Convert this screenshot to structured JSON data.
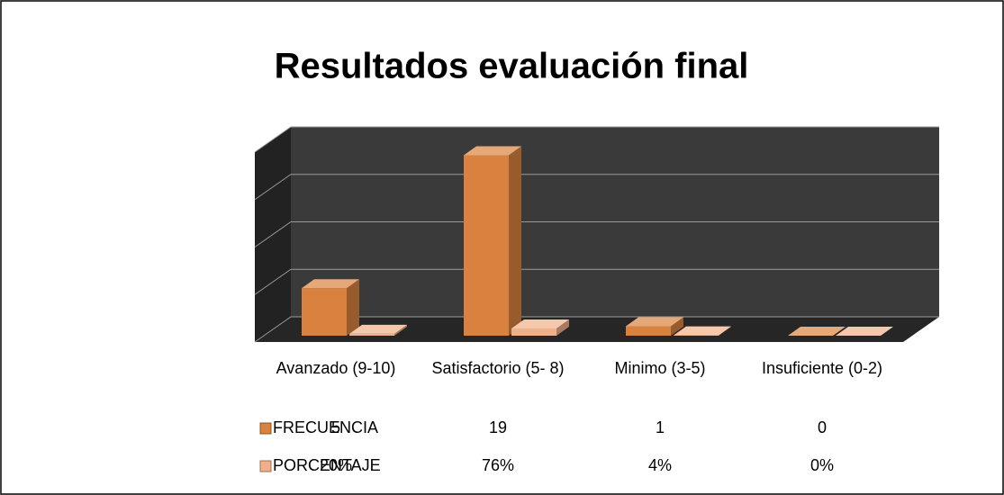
{
  "chart_data": {
    "type": "bar3d",
    "title": "Resultados evaluación final",
    "categories": [
      "Avanzado (9-10)",
      "Satisfactorio (5- 8)",
      "Minimo (3-5)",
      "Insuficiente (0-2)"
    ],
    "series": [
      {
        "name": "FRECUENCIA",
        "color": "#d9823f",
        "values": [
          5,
          19,
          1,
          0
        ],
        "value_labels": [
          "5",
          "19",
          "1",
          "0"
        ]
      },
      {
        "name": "PORCENTAJE",
        "color": "#f0b08a",
        "values": [
          0.2,
          0.76,
          0.04,
          0
        ],
        "value_labels": [
          "20%",
          "76%",
          "4%",
          "0%"
        ]
      }
    ],
    "ylim": [
      0,
      20
    ],
    "yticks": [
      0,
      5,
      10,
      15,
      20
    ],
    "grid": true
  }
}
